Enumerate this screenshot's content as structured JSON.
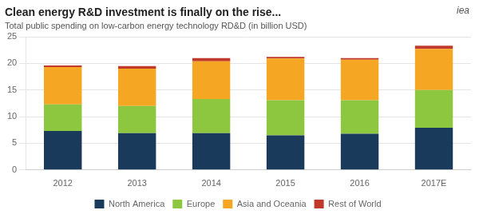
{
  "chart_data": {
    "type": "bar",
    "stacked": true,
    "title": "Clean energy R&D investment is finally on the rise...",
    "subtitle": "Total public spending on low-carbon energy technology RD&D (in billion USD)",
    "annotations": [
      "iea"
    ],
    "categories": [
      "2012",
      "2013",
      "2014",
      "2015",
      "2016",
      "2017E"
    ],
    "series": [
      {
        "name": "North America",
        "color": "#1a3a5c",
        "values": [
          7.3,
          6.9,
          6.9,
          6.5,
          6.8,
          7.9
        ]
      },
      {
        "name": "Europe",
        "color": "#8dc63f",
        "values": [
          5.0,
          5.1,
          6.4,
          6.6,
          6.3,
          7.1
        ]
      },
      {
        "name": "Asia and Oceania",
        "color": "#f5a623",
        "values": [
          7.0,
          7.0,
          7.1,
          7.8,
          7.6,
          7.7
        ]
      },
      {
        "name": "Rest of World",
        "color": "#c0392b",
        "values": [
          0.3,
          0.5,
          0.6,
          0.3,
          0.3,
          0.6
        ]
      }
    ],
    "ylim": [
      0,
      25
    ],
    "yticks": [
      0,
      5,
      10,
      15,
      20,
      25
    ],
    "grid": true,
    "legend": "bottom"
  }
}
